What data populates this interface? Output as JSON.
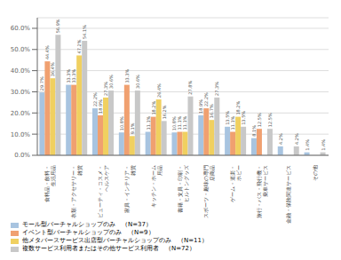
{
  "chart_data": {
    "type": "bar",
    "categories": [
      "食料品・飲料・\n生活用品",
      "衣類・アクセサリー・\n雑貨",
      "ビューティ・コスメ・\nヘルスケア",
      "家具・インテリア・\n雑貨",
      "キッチン・ホーム\n用品",
      "書籍・文具・印刷・\nヒルトングッズ",
      "スポーツ・趣味の専門\n店商品",
      "ゲーム・道楽・\nホビー",
      "旅行・バス・飛行機・\n乗車サービス",
      "金融・保険関連サービス",
      "その他"
    ],
    "series": [
      {
        "name": "モール型バーチャルショップのみ　（N=37）",
        "color": "#a8c4e0",
        "values": [
          29.7,
          33.3,
          22.2,
          10.8,
          11.1,
          10.8,
          18.9,
          13.5,
          8.1,
          4.2,
          1.4
        ],
        "value_labels": [
          "29.7%",
          "33.3%",
          "22.2%",
          "10.8%",
          "11.1%",
          "10.8%",
          "18.9%",
          "13.5%",
          "8.1%",
          "4.2%",
          "1.4%"
        ]
      },
      {
        "name": "イベント型バーチャルショップのみ　（N=9）",
        "color": "#f0a070",
        "values": [
          44.4,
          33.3,
          18.9,
          33.3,
          18.2,
          11.1,
          22.2,
          11.1,
          12.5,
          0.0,
          0.0
        ],
        "value_labels": [
          "44.4%",
          "33.3%",
          "18.9%",
          "33.3%",
          "18.2%",
          "11.1%",
          "22.2%",
          "11.1%",
          "12.5%",
          null,
          null
        ]
      },
      {
        "name": "他メタバースサービス出店型バーチャルショップのみ　（N=11）",
        "color": "#f0d060",
        "values": [
          36.4,
          47.2,
          27.3,
          9.1,
          26.4,
          11.1,
          16.7,
          18.2,
          0.0,
          0.0,
          0.0
        ],
        "value_labels": [
          "36.4%",
          "47.2%",
          "27.3%",
          "9.1%",
          "26.4%",
          "11.1%",
          "16.7%",
          "18.2%",
          null,
          null,
          null
        ]
      },
      {
        "name": "複数サービス利用者またはその他サービス利用者　（N=72）",
        "color": "#c8c8c8",
        "values": [
          56.9,
          54.1,
          30.6,
          30.6,
          16.2,
          27.8,
          27.3,
          13.5,
          12.5,
          4.2,
          1.4
        ],
        "value_labels": [
          "56.9%",
          "54.1%",
          "30.6%",
          "30.6%",
          "16.2%",
          "27.8%",
          "27.3%",
          "13.5%",
          "12.5%",
          "4.2%",
          "1.4%"
        ]
      }
    ],
    "ylim": [
      0,
      65
    ],
    "yticks": [
      {
        "value": 0,
        "label": "0.0%"
      },
      {
        "value": 10,
        "label": "10.0%"
      },
      {
        "value": 20,
        "label": "20.0%"
      },
      {
        "value": 30,
        "label": "30.0%"
      },
      {
        "value": 40,
        "label": "40.0%"
      },
      {
        "value": 50,
        "label": "50.0%"
      },
      {
        "value": 60,
        "label": "60.0%"
      }
    ],
    "grid": true,
    "data_labels": true,
    "legend": "lower left"
  }
}
